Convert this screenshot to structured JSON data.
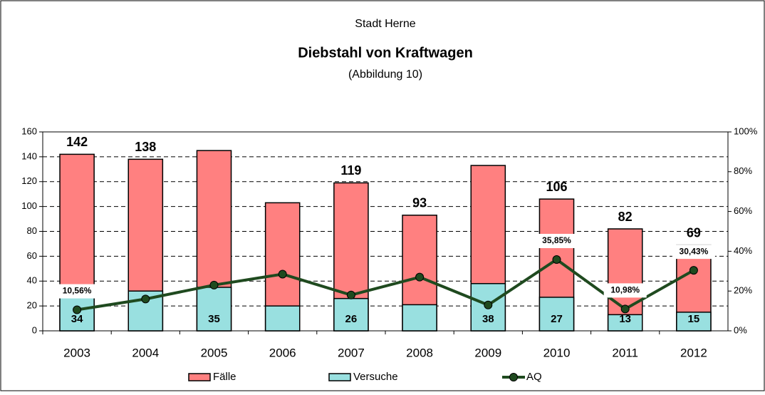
{
  "chart_data": {
    "type": "bar",
    "title": "Diebstahl von Kraftwagen",
    "supertitle": "Stadt Herne",
    "subtitle": "(Abbildung 10)",
    "categories": [
      "2003",
      "2004",
      "2005",
      "2006",
      "2007",
      "2008",
      "2009",
      "2010",
      "2011",
      "2012"
    ],
    "series": [
      {
        "name": "Fälle",
        "color": "#ff8080",
        "values": [
          142,
          138,
          145,
          103,
          119,
          93,
          133,
          106,
          82,
          69
        ],
        "value_labels": [
          "142",
          "138",
          null,
          null,
          "119",
          "93",
          null,
          "106",
          "82",
          "69"
        ]
      },
      {
        "name": "Versuche",
        "color": "#99e0e0",
        "values": [
          34,
          32,
          35,
          20,
          26,
          21,
          38,
          27,
          13,
          15
        ],
        "value_labels": [
          "34",
          null,
          "35",
          null,
          "26",
          null,
          "38",
          "27",
          "13",
          "15"
        ]
      },
      {
        "name": "AQ",
        "color": "#1f4a1f",
        "type": "line",
        "axis": "y2",
        "values": [
          10.56,
          16,
          23,
          28.5,
          18,
          27,
          13,
          35.85,
          10.98,
          30.43
        ],
        "value_labels": [
          "10,56%",
          null,
          null,
          null,
          null,
          null,
          null,
          "35,85%",
          "10,98%",
          "30,43%"
        ]
      }
    ],
    "ylim": [
      0,
      160
    ],
    "yticks": [
      0,
      20,
      40,
      60,
      80,
      100,
      120,
      140,
      160
    ],
    "y2lim": [
      0,
      100
    ],
    "y2ticks": [
      {
        "value": 0,
        "label": "0%"
      },
      {
        "value": 20,
        "label": "20%"
      },
      {
        "value": 40,
        "label": "40%"
      },
      {
        "value": 60,
        "label": "60%"
      },
      {
        "value": 80,
        "label": "80%"
      },
      {
        "value": 100,
        "label": "100%"
      }
    ],
    "grid": true,
    "legend": "bottom"
  }
}
